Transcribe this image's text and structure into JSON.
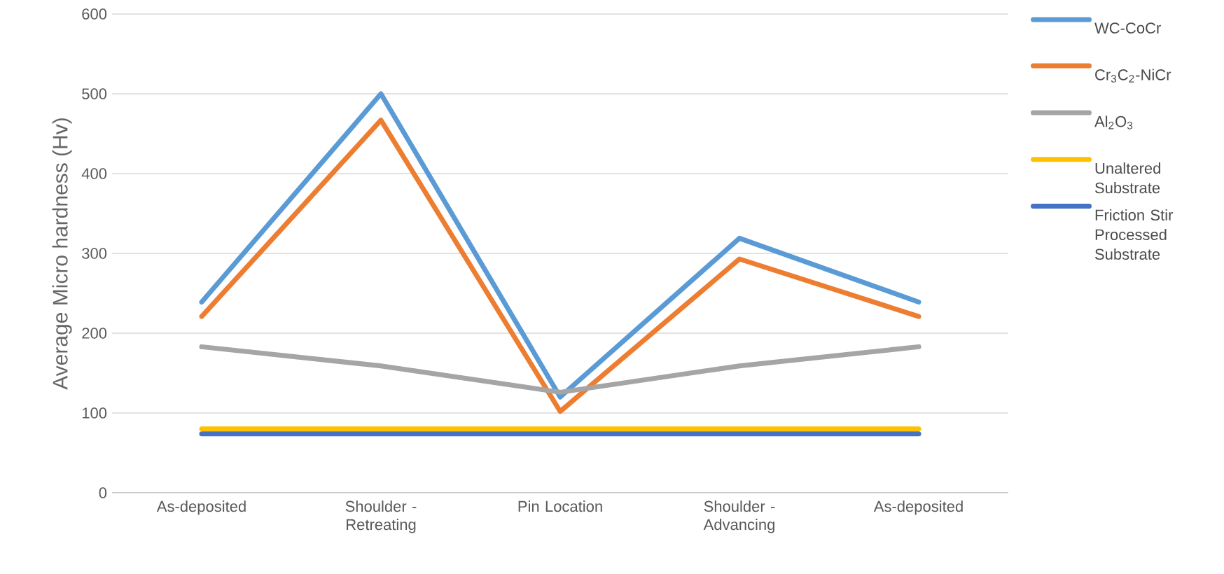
{
  "chart_data": {
    "type": "line",
    "ylabel": "Average Micro hardness (Hv)",
    "categories": [
      "As-deposited",
      "Shoulder - Retreating",
      "Pin Location",
      "Shoulder - Advancing",
      "As-deposited"
    ],
    "series": [
      {
        "name": "WC-CoCr",
        "color": "#5b9bd5",
        "values": [
          239,
          500,
          120,
          319,
          239
        ]
      },
      {
        "name": "Cr$_{3}$C$_{2}$-NiCr",
        "color": "#ed7d31",
        "values": [
          221,
          467,
          102,
          293,
          221
        ]
      },
      {
        "name": "Al$_{2}$O$_{3}$",
        "color": "#a5a5a5",
        "values": [
          183,
          159,
          126,
          159,
          183
        ]
      },
      {
        "name": "Unaltered Substrate",
        "color": "#ffc000",
        "values": [
          80,
          80,
          80,
          80,
          80
        ]
      },
      {
        "name": "Friction Stir Processed Substrate",
        "color": "#4472c4",
        "values": [
          74,
          74,
          74,
          74,
          74
        ]
      }
    ],
    "ylim": [
      0,
      600
    ],
    "yticks": [
      0,
      100,
      200,
      300,
      400,
      500,
      600
    ],
    "grid": "y",
    "legend": "right",
    "marker": "none",
    "line_style": "solid"
  }
}
